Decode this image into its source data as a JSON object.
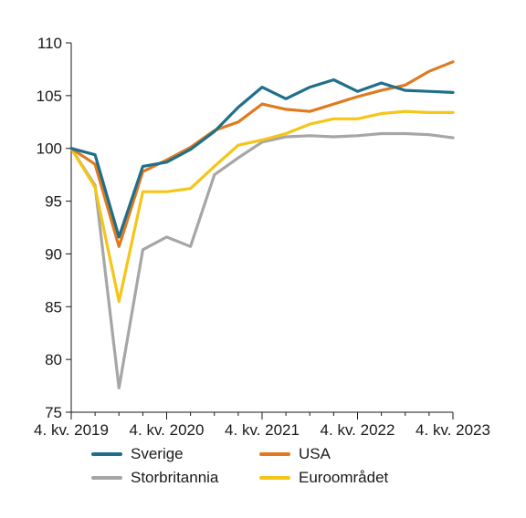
{
  "chart_data": {
    "type": "line",
    "x_ticks": [
      "4. kv. 2019",
      "4. kv. 2020",
      "4. kv. 2021",
      "4. kv. 2022",
      "4. kv. 2023"
    ],
    "ylim": [
      75,
      110
    ],
    "y_ticks": [
      75,
      80,
      85,
      90,
      95,
      100,
      105,
      110
    ],
    "grid": false,
    "legend_position": "bottom",
    "series": [
      {
        "name": "Sverige",
        "color": "#1f6f8b",
        "values": [
          100,
          99.4,
          91.6,
          98.3,
          98.7,
          99.9,
          101.6,
          103.9,
          105.8,
          104.7,
          105.8,
          106.5,
          105.4,
          106.2,
          105.5,
          105.4,
          105.3
        ]
      },
      {
        "name": "Storbritannia",
        "color": "#a6a6a6",
        "values": [
          100,
          96.5,
          77.3,
          90.4,
          91.6,
          90.7,
          97.5,
          99.1,
          100.6,
          101.1,
          101.2,
          101.1,
          101.2,
          101.4,
          101.4,
          101.3,
          101
        ]
      },
      {
        "name": "USA",
        "color": "#e07a1f",
        "values": [
          100,
          98.5,
          90.7,
          97.8,
          98.9,
          100.1,
          101.7,
          102.5,
          104.2,
          103.7,
          103.5,
          104.2,
          104.9,
          105.5,
          106,
          107.3,
          108.2
        ]
      },
      {
        "name": "Euroområdet",
        "color": "#f5c518",
        "values": [
          100,
          96.3,
          85.5,
          95.9,
          95.9,
          96.2,
          98.3,
          100.3,
          100.8,
          101.4,
          102.3,
          102.8,
          102.8,
          103.3,
          103.5,
          103.4,
          103.4
        ]
      }
    ]
  }
}
